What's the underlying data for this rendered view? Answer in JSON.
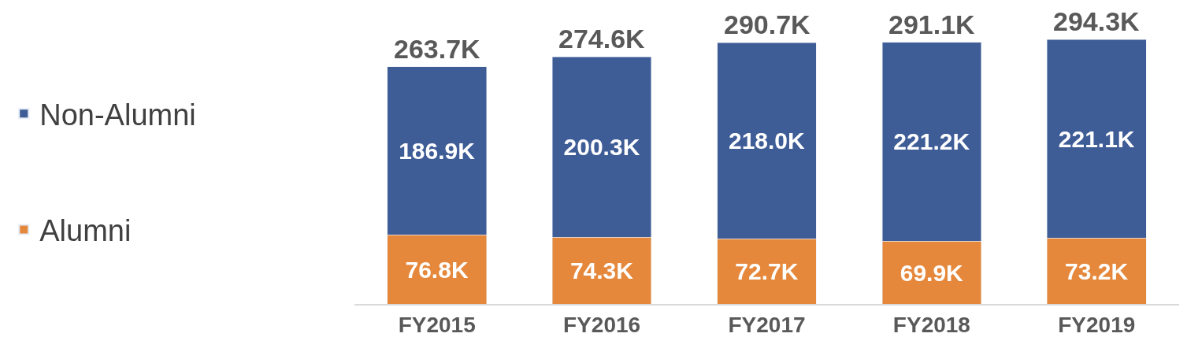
{
  "chart_data": {
    "type": "bar",
    "stacked": true,
    "categories": [
      "FY2015",
      "FY2016",
      "FY2017",
      "FY2018",
      "FY2019"
    ],
    "series": [
      {
        "name": "Alumni",
        "color": "#e5883c",
        "values": [
          76.8,
          74.3,
          72.7,
          69.9,
          73.2
        ],
        "value_labels": [
          "76.8K",
          "74.3K",
          "72.7K",
          "69.9K",
          "73.2K"
        ]
      },
      {
        "name": "Non-Alumni",
        "color": "#3e5c96",
        "values": [
          186.9,
          200.3,
          218.0,
          221.2,
          221.1
        ],
        "value_labels": [
          "186.9K",
          "200.3K",
          "218.0K",
          "221.2K",
          "221.1K"
        ]
      }
    ],
    "totals": [
      "263.7K",
      "274.6K",
      "290.7K",
      "291.1K",
      "294.3K"
    ],
    "legend": "left",
    "tick_labels": "x"
  }
}
